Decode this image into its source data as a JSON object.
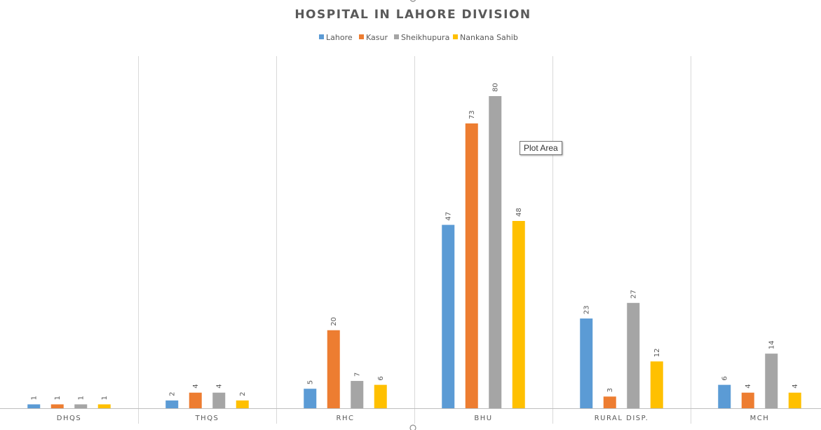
{
  "chart_data": {
    "type": "bar",
    "title": "HOSPITAL IN LAHORE DIVISION",
    "categories": [
      "DHQS",
      "THQS",
      "RHC",
      "BHU",
      "RURAL DISP.",
      "MCH"
    ],
    "series": [
      {
        "name": "Lahore",
        "color": "#5B9BD5",
        "values": [
          1,
          2,
          5,
          47,
          23,
          6
        ]
      },
      {
        "name": "Kasur",
        "color": "#ED7D31",
        "values": [
          1,
          4,
          20,
          73,
          3,
          4
        ]
      },
      {
        "name": "Sheikhupura",
        "color": "#A5A5A5",
        "values": [
          1,
          4,
          7,
          80,
          27,
          14
        ]
      },
      {
        "name": "Nankana Sahib",
        "color": "#FFC000",
        "values": [
          1,
          2,
          6,
          48,
          12,
          4
        ]
      }
    ],
    "xlabel": "",
    "ylabel": "",
    "ylim": [
      0,
      90
    ],
    "legend_position": "top",
    "gridlines": "vertical-category-separators"
  },
  "tooltip": {
    "label": "Plot Area"
  },
  "colors": {
    "text": "#595959",
    "grid": "#D9D9D9",
    "axis": "#BFBFBF"
  }
}
